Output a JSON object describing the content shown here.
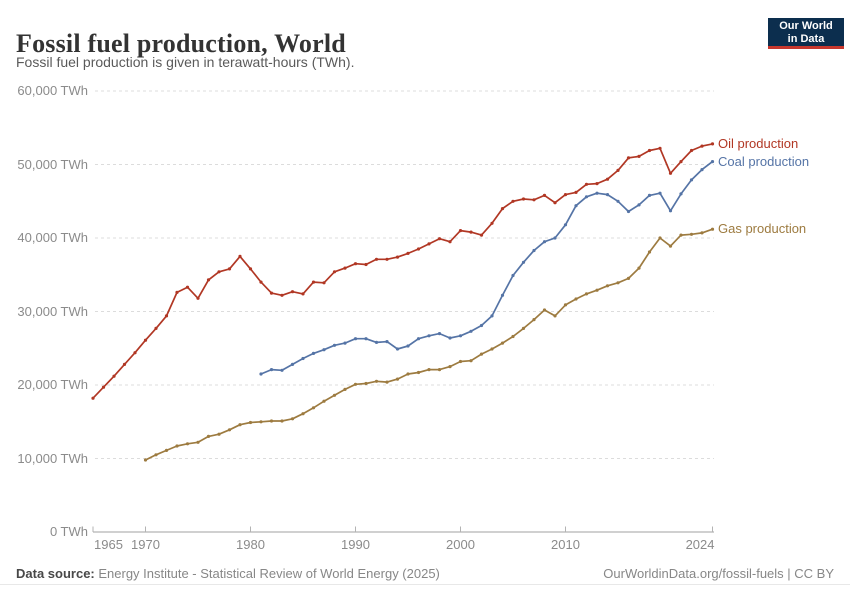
{
  "logo": {
    "line1": "Our World",
    "line2": "in Data"
  },
  "footer": {
    "source_label": "Data source:",
    "source_text": " Energy Institute - Statistical Review of World Energy (2025)",
    "attribution": "OurWorldinData.org/fossil-fuels | CC BY"
  },
  "chart_data": {
    "type": "line",
    "title": "Fossil fuel production, World",
    "subtitle": "Fossil fuel production is given in terawatt-hours (TWh).",
    "unit": "TWh",
    "xlim": [
      1965,
      2024
    ],
    "ylim": [
      0,
      60000
    ],
    "grid": "horizontal-dashed",
    "legend_position": "right-of-line-ends",
    "y_ticks": [
      {
        "value": 60000,
        "label": "60,000 TWh"
      },
      {
        "value": 50000,
        "label": "50,000 TWh"
      },
      {
        "value": 40000,
        "label": "40,000 TWh"
      },
      {
        "value": 30000,
        "label": "30,000 TWh"
      },
      {
        "value": 20000,
        "label": "20,000 TWh"
      },
      {
        "value": 10000,
        "label": "10,000 TWh"
      },
      {
        "value": 0,
        "label": "0 TWh"
      }
    ],
    "x_ticks": [
      {
        "value": 1965,
        "label": "1965"
      },
      {
        "value": 1970,
        "label": "1970"
      },
      {
        "value": 1980,
        "label": "1980"
      },
      {
        "value": 1990,
        "label": "1990"
      },
      {
        "value": 2000,
        "label": "2000"
      },
      {
        "value": 2010,
        "label": "2010"
      },
      {
        "value": 2024,
        "label": "2024"
      }
    ],
    "series": [
      {
        "name": "Oil production",
        "color": "#b13724",
        "start_year": 1965,
        "values": [
          18200,
          19700,
          21200,
          22800,
          24400,
          26100,
          27700,
          29400,
          32600,
          33300,
          31800,
          34300,
          35400,
          35800,
          37500,
          35800,
          34000,
          32500,
          32200,
          32700,
          32400,
          34000,
          33900,
          35400,
          35900,
          36500,
          36400,
          37100,
          37100,
          37400,
          37900,
          38500,
          39200,
          39900,
          39500,
          41000,
          40800,
          40400,
          42000,
          44000,
          45000,
          45300,
          45200,
          45800,
          44800,
          45900,
          46200,
          47300,
          47400,
          48000,
          49200,
          50900,
          51100,
          51900,
          52200,
          48800,
          50400,
          51900,
          52500,
          52800
        ]
      },
      {
        "name": "Coal production",
        "color": "#5574a6",
        "start_year": 1981,
        "values": [
          21500,
          22100,
          22000,
          22800,
          23600,
          24300,
          24800,
          25400,
          25700,
          26300,
          26300,
          25800,
          25900,
          24900,
          25300,
          26300,
          26700,
          27000,
          26400,
          26700,
          27300,
          28100,
          29400,
          32200,
          34900,
          36700,
          38300,
          39500,
          40000,
          41800,
          44400,
          45600,
          46100,
          45900,
          45000,
          43600,
          44500,
          45800,
          46100,
          43700,
          46000,
          47900,
          49300,
          50400
        ]
      },
      {
        "name": "Gas production",
        "color": "#9d7b40",
        "start_year": 1970,
        "values": [
          9800,
          10500,
          11100,
          11700,
          12000,
          12200,
          13000,
          13300,
          13900,
          14600,
          14900,
          15000,
          15100,
          15100,
          15400,
          16100,
          16900,
          17800,
          18600,
          19400,
          20100,
          20200,
          20500,
          20400,
          20800,
          21500,
          21700,
          22100,
          22100,
          22500,
          23200,
          23300,
          24200,
          24900,
          25700,
          26600,
          27700,
          28900,
          30200,
          29400,
          30900,
          31700,
          32400,
          32900,
          33500,
          33900,
          34500,
          35900,
          38100,
          40000,
          38900,
          40400,
          40500,
          40700,
          41200
        ]
      }
    ]
  }
}
